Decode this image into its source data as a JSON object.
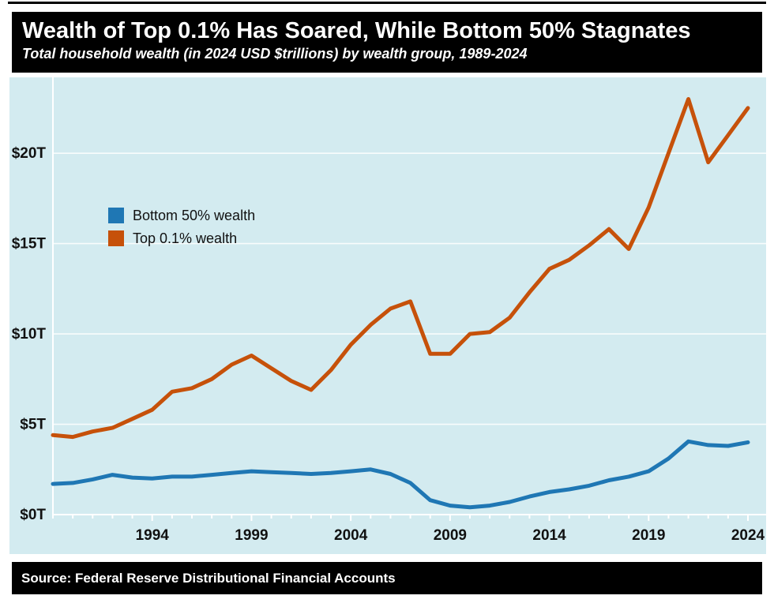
{
  "page": {
    "background_color": "#ffffff",
    "top_rule_color": "#000000"
  },
  "header": {
    "title": "Wealth of Top 0.1% Has Soared, While Bottom 50% Stagnates",
    "subtitle": "Total household wealth (in 2024 USD $trillions) by wealth group, 1989-2024",
    "background_color": "#000000",
    "text_color": "#ffffff"
  },
  "footer": {
    "source": "Source: Federal Reserve Distributional Financial Accounts",
    "background_color": "#000000",
    "text_color": "#ffffff"
  },
  "chart_data": {
    "type": "line",
    "title": "Wealth of Top 0.1% Has Soared, While Bottom 50% Stagnates",
    "subtitle": "Total household wealth (in 2024 USD $trillions) by wealth group, 1989-2024",
    "xlabel": "",
    "ylabel": "",
    "background_color": "#d3ebf0",
    "grid": true,
    "gridline_color": "#ffffff",
    "axis_color": "#ffffff",
    "label_color": "#111111",
    "legend_position": "upper-left-inside",
    "x": [
      1989,
      1990,
      1991,
      1992,
      1993,
      1994,
      1995,
      1996,
      1997,
      1998,
      1999,
      2000,
      2001,
      2002,
      2003,
      2004,
      2005,
      2006,
      2007,
      2008,
      2009,
      2010,
      2011,
      2012,
      2013,
      2014,
      2015,
      2016,
      2017,
      2018,
      2019,
      2020,
      2021,
      2022,
      2023,
      2024
    ],
    "series": [
      {
        "name": "Bottom 50% wealth",
        "color": "#1f77b4",
        "values": [
          1.7,
          1.75,
          1.95,
          2.2,
          2.05,
          2.0,
          2.1,
          2.1,
          2.2,
          2.3,
          2.4,
          2.35,
          2.3,
          2.25,
          2.3,
          2.4,
          2.5,
          2.25,
          1.75,
          0.8,
          0.5,
          0.4,
          0.5,
          0.7,
          1.0,
          1.25,
          1.4,
          1.6,
          1.9,
          2.1,
          2.4,
          3.1,
          4.05,
          3.85,
          3.8,
          4.0
        ]
      },
      {
        "name": "Top 0.1% wealth",
        "color": "#c6510a",
        "values": [
          4.4,
          4.3,
          4.6,
          4.8,
          5.3,
          5.8,
          6.8,
          7.0,
          7.5,
          8.3,
          8.8,
          8.1,
          7.4,
          6.9,
          8.0,
          9.4,
          10.5,
          11.4,
          11.8,
          8.9,
          8.9,
          10.0,
          10.1,
          10.9,
          12.3,
          13.6,
          14.1,
          14.9,
          15.8,
          14.7,
          17.0,
          20.0,
          23.0,
          19.5,
          21.0,
          22.5
        ]
      }
    ],
    "ylim": [
      0,
      24.2
    ],
    "yticks": [
      {
        "value": 0,
        "label": "$0T"
      },
      {
        "value": 5,
        "label": "$5T"
      },
      {
        "value": 10,
        "label": "$10T"
      },
      {
        "value": 15,
        "label": "$15T"
      },
      {
        "value": 20,
        "label": "$20T"
      }
    ],
    "xticks": [
      1994,
      1999,
      2004,
      2009,
      2014,
      2019,
      2024
    ],
    "xlim": [
      1989,
      2024
    ]
  }
}
